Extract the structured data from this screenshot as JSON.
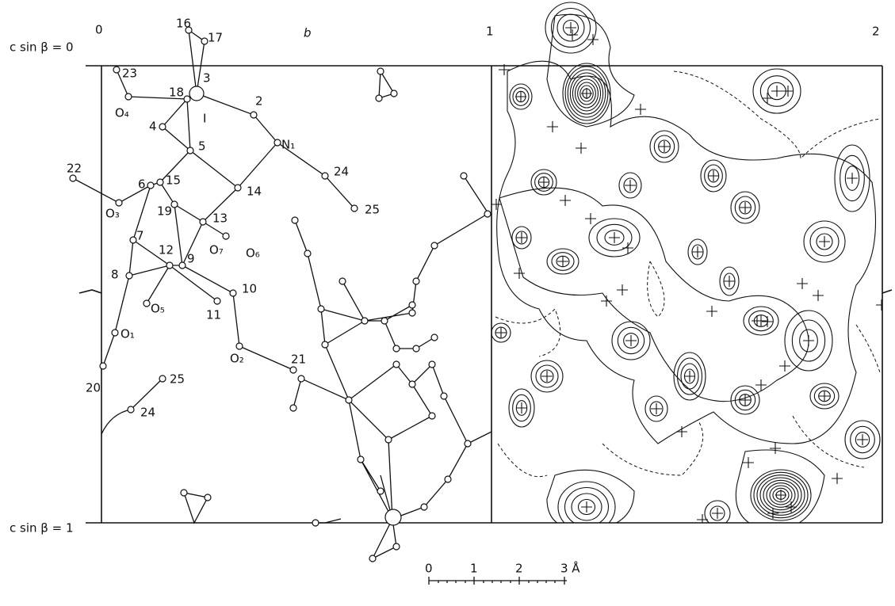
{
  "header": {
    "title": "b"
  },
  "axes": {
    "origin": "0",
    "mid": "1",
    "end": "2",
    "top": "c sin β = 0",
    "bottom": "c sin β = 1"
  },
  "atoms": [
    "16",
    "17",
    "23",
    "18",
    "3",
    "I",
    "2",
    "O₄",
    "4",
    "N₁",
    "5",
    "22",
    "24",
    "6",
    "15",
    "14",
    "19",
    "O₃",
    "25",
    "13",
    "7",
    "O₇",
    "O₆",
    "12",
    "9",
    "8",
    "10",
    "O₅",
    "11",
    "O₁",
    "O₂",
    "21",
    "20",
    "25",
    "24"
  ],
  "scale": {
    "ticks": [
      "0",
      "1",
      "2",
      "3 Å"
    ]
  }
}
